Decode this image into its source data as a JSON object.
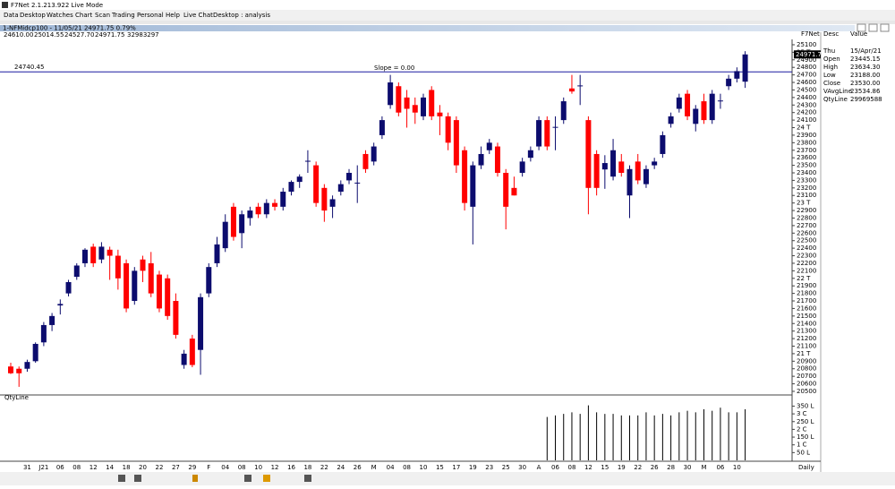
{
  "ui": {
    "title": "F7Net 2.1.213.922 Live Mode",
    "menu": [
      "Data",
      "Desktop",
      "Watches",
      "Chart",
      "Scan",
      "Trading",
      "Personal",
      "Help",
      "Live Chat",
      "Desktop : analysis"
    ],
    "symbol_line": "1-NFMidcp100 - 11/05/21 24971.75 0.79%",
    "quote": [
      "24610.00",
      "25014.55",
      "24527.70",
      "24971.75",
      "32983297"
    ],
    "panel_name": "F7Net",
    "columns": [
      "Desc",
      "Value"
    ],
    "day": "Thu",
    "date": "15/Apr/21",
    "rows": [
      [
        "Open",
        "23445.15"
      ],
      [
        "High",
        "23634.30"
      ],
      [
        "Low",
        "23188.00"
      ],
      [
        "Close",
        "23530.00"
      ],
      [
        "VAvgLine",
        "23534.86"
      ],
      [
        "QtyLine",
        "29969588"
      ]
    ],
    "lower_panel": "QtyLine",
    "period": "Daily",
    "slope": "Slope = 0.00"
  },
  "chart_data": {
    "type": "candlestick",
    "up_color": "#0c0c6e",
    "down_color": "#ff0000",
    "hline": 24740.45,
    "hline_color": "#1a1aa0",
    "categories": [
      null,
      null,
      "31",
      null,
      "J21",
      null,
      "06",
      null,
      "08",
      null,
      "12",
      null,
      "14",
      null,
      "18",
      null,
      "20",
      null,
      "22",
      null,
      "27",
      null,
      "29",
      null,
      "F",
      null,
      "04",
      null,
      "08",
      null,
      "10",
      null,
      "12",
      null,
      "16",
      null,
      "18",
      null,
      "22",
      null,
      "24",
      null,
      "26",
      null,
      "M",
      null,
      "04",
      null,
      "08",
      null,
      "10",
      null,
      "15",
      null,
      "17",
      null,
      "19",
      null,
      "23",
      null,
      "25",
      null,
      "30",
      null,
      "A",
      null,
      "06",
      null,
      "08",
      null,
      "12",
      null,
      "15",
      null,
      "19",
      null,
      "22",
      null,
      "26",
      null,
      "28",
      null,
      "30",
      null,
      "M",
      null,
      "06",
      null,
      "10",
      null
    ],
    "open": [
      20830,
      20800,
      20800,
      20900,
      21150,
      21380,
      21640,
      21800,
      22020,
      22200,
      22420,
      22250,
      22380,
      22300,
      22200,
      21700,
      22250,
      22200,
      22050,
      22000,
      21700,
      20850,
      21200,
      21050,
      21800,
      22200,
      22400,
      22950,
      22600,
      22800,
      22950,
      22850,
      23000,
      22950,
      23150,
      23280,
      23550,
      23500,
      23200,
      22950,
      23150,
      23300,
      23260,
      23650,
      23550,
      23900,
      24300,
      24550,
      24400,
      24300,
      24150,
      24500,
      24200,
      24150,
      24100,
      23700,
      22950,
      23500,
      23700,
      23750,
      23400,
      23200,
      23400,
      23600,
      23750,
      24100,
      24000,
      24100,
      24520,
      24550,
      24100,
      23650,
      23445.15,
      23350,
      23550,
      23100,
      23550,
      23250,
      23500,
      23650,
      24050,
      24250,
      24450,
      24050,
      24350,
      24100,
      24350,
      24550,
      24650,
      24610
    ],
    "high": [
      20880,
      20830,
      20920,
      21150,
      21420,
      21540,
      21720,
      21980,
      22200,
      22400,
      22460,
      22480,
      22420,
      22380,
      22250,
      22150,
      22300,
      22350,
      22100,
      22050,
      21800,
      21050,
      21250,
      21800,
      22200,
      22550,
      22850,
      23000,
      22900,
      22950,
      23000,
      23050,
      23050,
      23200,
      23300,
      23380,
      23700,
      23550,
      23250,
      23100,
      23300,
      23450,
      23500,
      23700,
      23800,
      24150,
      24700,
      24600,
      24500,
      24400,
      24450,
      24550,
      24300,
      24200,
      24150,
      23750,
      23550,
      23750,
      23850,
      23800,
      23450,
      23350,
      23600,
      23750,
      24150,
      24150,
      24150,
      24400,
      24700,
      24700,
      24150,
      23700,
      23634.3,
      23850,
      23650,
      23500,
      23650,
      23500,
      23600,
      23950,
      24200,
      24450,
      24500,
      24300,
      24450,
      24500,
      24450,
      24700,
      24800,
      25014.55
    ],
    "low": [
      20730,
      20560,
      20760,
      20880,
      21100,
      21300,
      21520,
      21760,
      21980,
      22150,
      22150,
      22200,
      21980,
      21850,
      21550,
      21650,
      21950,
      21750,
      21550,
      21450,
      21200,
      20800,
      20820,
      20720,
      21750,
      22150,
      22350,
      22500,
      22400,
      22700,
      22800,
      22800,
      22900,
      22900,
      23100,
      23200,
      23400,
      22950,
      22750,
      22800,
      23100,
      23250,
      23000,
      23400,
      23500,
      23850,
      24250,
      24150,
      24000,
      24050,
      24100,
      24100,
      23900,
      23700,
      23400,
      22900,
      22450,
      23450,
      23650,
      23350,
      22650,
      23100,
      23350,
      23550,
      23700,
      23700,
      23700,
      24050,
      24450,
      24300,
      22850,
      23100,
      23188,
      23300,
      23350,
      22800,
      23250,
      23200,
      23450,
      23600,
      24000,
      24200,
      24100,
      23950,
      24050,
      24050,
      24250,
      24500,
      24600,
      24527.7
    ],
    "close": [
      20740,
      20740,
      20890,
      21130,
      21380,
      21500,
      21660,
      21950,
      22170,
      22380,
      22200,
      22420,
      22300,
      22000,
      21600,
      22100,
      22100,
      21800,
      21600,
      21500,
      21250,
      21000,
      20850,
      21750,
      22150,
      22450,
      22750,
      22550,
      22850,
      22900,
      22850,
      23000,
      22950,
      23150,
      23280,
      23350,
      23560,
      23000,
      22900,
      23050,
      23250,
      23400,
      23270,
      23450,
      23750,
      24100,
      24600,
      24200,
      24250,
      24200,
      24400,
      24150,
      24150,
      23800,
      23500,
      23000,
      23500,
      23650,
      23800,
      23400,
      22950,
      23100,
      23550,
      23700,
      24100,
      23750,
      24010,
      24350,
      24480,
      24560,
      23200,
      23200,
      23530,
      23700,
      23400,
      23450,
      23300,
      23450,
      23550,
      23900,
      24150,
      24400,
      24150,
      24250,
      24100,
      24450,
      24360,
      24650,
      24750,
      24971.75
    ],
    "ylim": [
      20464,
      25171
    ],
    "yticks": [
      20500,
      20600,
      20700,
      20800,
      20900,
      {
        "value": 21000,
        "label": "21 T"
      },
      21100,
      21200,
      21300,
      21400,
      21500,
      21600,
      21700,
      21800,
      21900,
      {
        "value": 22000,
        "label": "22 T"
      },
      22100,
      22200,
      22300,
      22400,
      22500,
      22600,
      22700,
      22800,
      22900,
      {
        "value": 23000,
        "label": "23 T"
      },
      23100,
      23200,
      23300,
      23400,
      23500,
      23600,
      23700,
      23800,
      23900,
      {
        "value": 24000,
        "label": "24 T"
      },
      24100,
      24200,
      24300,
      24400,
      24500,
      24600,
      24700,
      24800,
      24900,
      {
        "value": 25000,
        "label": "25 T"
      },
      25100
    ],
    "volume": {
      "values": [
        null,
        null,
        null,
        null,
        null,
        null,
        null,
        null,
        null,
        null,
        null,
        null,
        null,
        null,
        null,
        null,
        null,
        null,
        null,
        null,
        null,
        null,
        null,
        null,
        null,
        null,
        null,
        null,
        null,
        null,
        null,
        null,
        null,
        null,
        null,
        null,
        null,
        null,
        null,
        null,
        null,
        null,
        null,
        null,
        null,
        null,
        null,
        null,
        null,
        null,
        null,
        null,
        null,
        null,
        null,
        null,
        null,
        null,
        null,
        null,
        null,
        null,
        null,
        null,
        null,
        28000000,
        29000000,
        30000000,
        31000000,
        30000000,
        35500000,
        31000000,
        29969588,
        30000000,
        29000000,
        29000000,
        29000000,
        31000000,
        29000000,
        30000000,
        29000000,
        31000000,
        32000000,
        31000000,
        33000000,
        32000000,
        34000000,
        31000000,
        31000000,
        32983297
      ],
      "color": "#000000",
      "ylim": [
        0,
        37000000
      ],
      "yticks": [
        {
          "value": 5000000,
          "label": "50 L"
        },
        {
          "value": 10000000,
          "label": "1 C"
        },
        {
          "value": 15000000,
          "label": "150 L"
        },
        {
          "value": 20000000,
          "label": "2 C"
        },
        {
          "value": 25000000,
          "label": "250 L"
        },
        {
          "value": 30000000,
          "label": "3 C"
        },
        {
          "value": 35000000,
          "label": "350 L"
        }
      ]
    }
  }
}
